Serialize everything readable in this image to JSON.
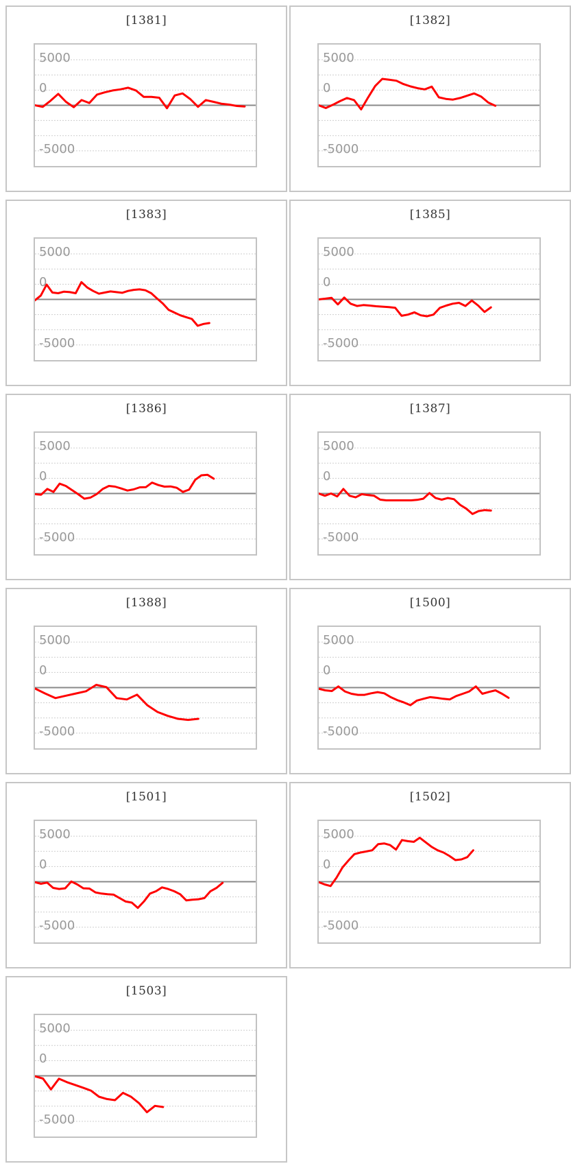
{
  "page": {
    "background": "#ffffff",
    "layout": "2-column grid of sparkline panels",
    "panel_count": 11
  },
  "styles": {
    "series_color": "#ff0000",
    "zero_line_color": "#898989",
    "grid_color": "#cdcdcd",
    "plot_border_color": "#c2c2c2",
    "panel_border_color": "#c6c6c6",
    "title_color": "#333333",
    "axis_label_color": "#999999"
  },
  "axis": {
    "ytick_labels": [
      "5000",
      "0",
      "-5000"
    ],
    "ytick_values": [
      5000,
      0,
      -5000
    ],
    "ylim": [
      -6667,
      6667
    ],
    "grid_step": 1667,
    "grid_style": "dotted",
    "zero_line": "solid"
  },
  "chart_data": [
    {
      "type": "line",
      "title": "[1381]",
      "x_end_fraction": 0.95,
      "values": [
        0,
        -175,
        500,
        1250,
        375,
        -200,
        575,
        250,
        1175,
        1425,
        1625,
        1750,
        1925,
        1625,
        925,
        925,
        825,
        -325,
        1075,
        1300,
        675,
        -175,
        575,
        375,
        175,
        75,
        -75,
        -125
      ]
    },
    {
      "type": "line",
      "title": "[1382]",
      "x_end_fraction": 0.8,
      "values": [
        0,
        -300,
        50,
        450,
        800,
        575,
        -450,
        875,
        2125,
        2900,
        2800,
        2700,
        2325,
        2075,
        1875,
        1750,
        2050,
        875,
        700,
        625,
        800,
        1050,
        1300,
        950,
        300,
        -50
      ]
    },
    {
      "type": "line",
      "title": "[1383]",
      "x_end_fraction": 0.79,
      "values": [
        -100,
        425,
        1625,
        750,
        675,
        850,
        800,
        675,
        1900,
        1300,
        925,
        625,
        750,
        875,
        800,
        725,
        925,
        1050,
        1100,
        1000,
        675,
        100,
        -450,
        -1150,
        -1450,
        -1750,
        -1950,
        -2150,
        -2900,
        -2700,
        -2600
      ]
    },
    {
      "type": "line",
      "title": "[1385]",
      "x_end_fraction": 0.78,
      "values": [
        0,
        75,
        175,
        -550,
        200,
        -475,
        -725,
        -625,
        -675,
        -750,
        -800,
        -850,
        -925,
        -1800,
        -1675,
        -1425,
        -1750,
        -1850,
        -1675,
        -925,
        -675,
        -475,
        -375,
        -725,
        -125,
        -675,
        -1375,
        -875
      ]
    },
    {
      "type": "line",
      "title": "[1386]",
      "x_end_fraction": 0.81,
      "values": [
        -75,
        -125,
        500,
        175,
        1075,
        825,
        375,
        -75,
        -575,
        -450,
        -75,
        500,
        825,
        750,
        550,
        325,
        450,
        675,
        700,
        1200,
        925,
        750,
        775,
        625,
        175,
        425,
        1500,
        2000,
        2050,
        1625
      ]
    },
    {
      "type": "line",
      "title": "[1387]",
      "x_end_fraction": 0.78,
      "values": [
        0,
        -250,
        0,
        -325,
        500,
        -250,
        -425,
        -75,
        -175,
        -250,
        -675,
        -750,
        -750,
        -750,
        -750,
        -750,
        -700,
        -575,
        50,
        -500,
        -675,
        -500,
        -625,
        -1250,
        -1675,
        -2250,
        -1925,
        -1825,
        -1875
      ]
    },
    {
      "type": "line",
      "title": "[1388]",
      "x_end_fraction": 0.74,
      "values": [
        -100,
        -650,
        -1150,
        -900,
        -650,
        -400,
        300,
        50,
        -1150,
        -1300,
        -775,
        -1925,
        -2675,
        -3100,
        -3425,
        -3550,
        -3425
      ]
    },
    {
      "type": "line",
      "title": "[1500]",
      "x_end_fraction": 0.86,
      "values": [
        -125,
        -300,
        -375,
        125,
        -425,
        -675,
        -800,
        -800,
        -625,
        -500,
        -625,
        -1050,
        -1375,
        -1625,
        -1925,
        -1425,
        -1225,
        -1050,
        -1125,
        -1225,
        -1300,
        -925,
        -675,
        -425,
        125,
        -675,
        -475,
        -300,
        -675,
        -1125
      ]
    },
    {
      "type": "line",
      "title": "[1501]",
      "x_end_fraction": 0.85,
      "values": [
        -50,
        -225,
        -100,
        -675,
        -800,
        -725,
        25,
        -300,
        -725,
        -750,
        -1175,
        -1300,
        -1375,
        -1425,
        -1800,
        -2175,
        -2300,
        -2875,
        -2175,
        -1300,
        -1050,
        -625,
        -800,
        -1050,
        -1375,
        -2050,
        -1975,
        -1925,
        -1800,
        -1050,
        -675,
        -125
      ]
    },
    {
      "type": "line",
      "title": "[1502]",
      "x_end_fraction": 0.7,
      "values": [
        -50,
        -300,
        -475,
        450,
        1575,
        2325,
        3025,
        3200,
        3325,
        3450,
        4125,
        4200,
        4025,
        3525,
        4575,
        4450,
        4375,
        4825,
        4325,
        3825,
        3450,
        3200,
        2825,
        2375,
        2450,
        2700,
        3450
      ]
    },
    {
      "type": "line",
      "title": "[1503]",
      "x_end_fraction": 0.58,
      "values": [
        -50,
        -300,
        -1500,
        -325,
        -700,
        -1000,
        -1300,
        -1625,
        -2300,
        -2550,
        -2675,
        -1875,
        -2300,
        -3000,
        -4000,
        -3300,
        -3425
      ]
    }
  ]
}
